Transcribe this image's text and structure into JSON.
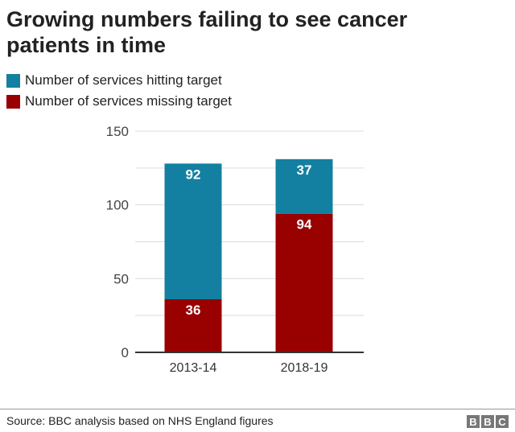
{
  "chart_data": {
    "type": "bar",
    "stacked": true,
    "title": "Growing numbers failing to see cancer patients in time",
    "categories": [
      "2013-14",
      "2018-19"
    ],
    "series": [
      {
        "name": "Number of services missing target",
        "values": [
          36,
          94
        ],
        "color": "#990000"
      },
      {
        "name": "Number of services hitting target",
        "values": [
          92,
          37
        ],
        "color": "#1380A1"
      }
    ],
    "ylim": [
      0,
      150
    ],
    "yticks": [
      0,
      50,
      100,
      150
    ],
    "grid": true,
    "legend_placement": "top-left",
    "xlabel": "",
    "ylabel": ""
  },
  "legend": [
    {
      "label": "Number of services hitting target",
      "color": "#1380A1"
    },
    {
      "label": "Number of services missing target",
      "color": "#990000"
    }
  ],
  "footer": {
    "source": "Source: BBC analysis based on NHS England figures",
    "logo": "BBC"
  }
}
